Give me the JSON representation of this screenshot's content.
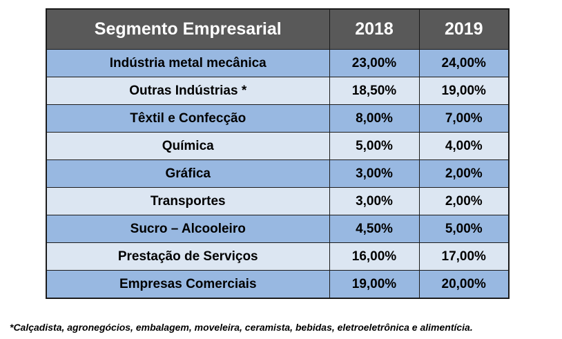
{
  "table": {
    "headers": [
      "Segmento Empresarial",
      "2018",
      "2019"
    ],
    "rows": [
      [
        "Indústria metal mecânica",
        "23,00%",
        "24,00%"
      ],
      [
        "Outras Indústrias *",
        "18,50%",
        "19,00%"
      ],
      [
        "Têxtil e Confecção",
        "8,00%",
        "7,00%"
      ],
      [
        "Química",
        "5,00%",
        "4,00%"
      ],
      [
        "Gráfica",
        "3,00%",
        "2,00%"
      ],
      [
        "Transportes",
        "3,00%",
        "2,00%"
      ],
      [
        "Sucro – Alcooleiro",
        "4,50%",
        "5,00%"
      ],
      [
        "Prestação de Serviços",
        "16,00%",
        "17,00%"
      ],
      [
        "Empresas Comerciais",
        "19,00%",
        "20,00%"
      ]
    ]
  },
  "footnote": "*Calçadista, agronegócios, embalagem, moveleira, ceramista, bebidas, eletroeletrônica e alimentícia.",
  "colors": {
    "header_bg": "#595959",
    "header_text": "#ffffff",
    "row_dark": "#98b8e1",
    "row_light": "#dce6f2"
  }
}
